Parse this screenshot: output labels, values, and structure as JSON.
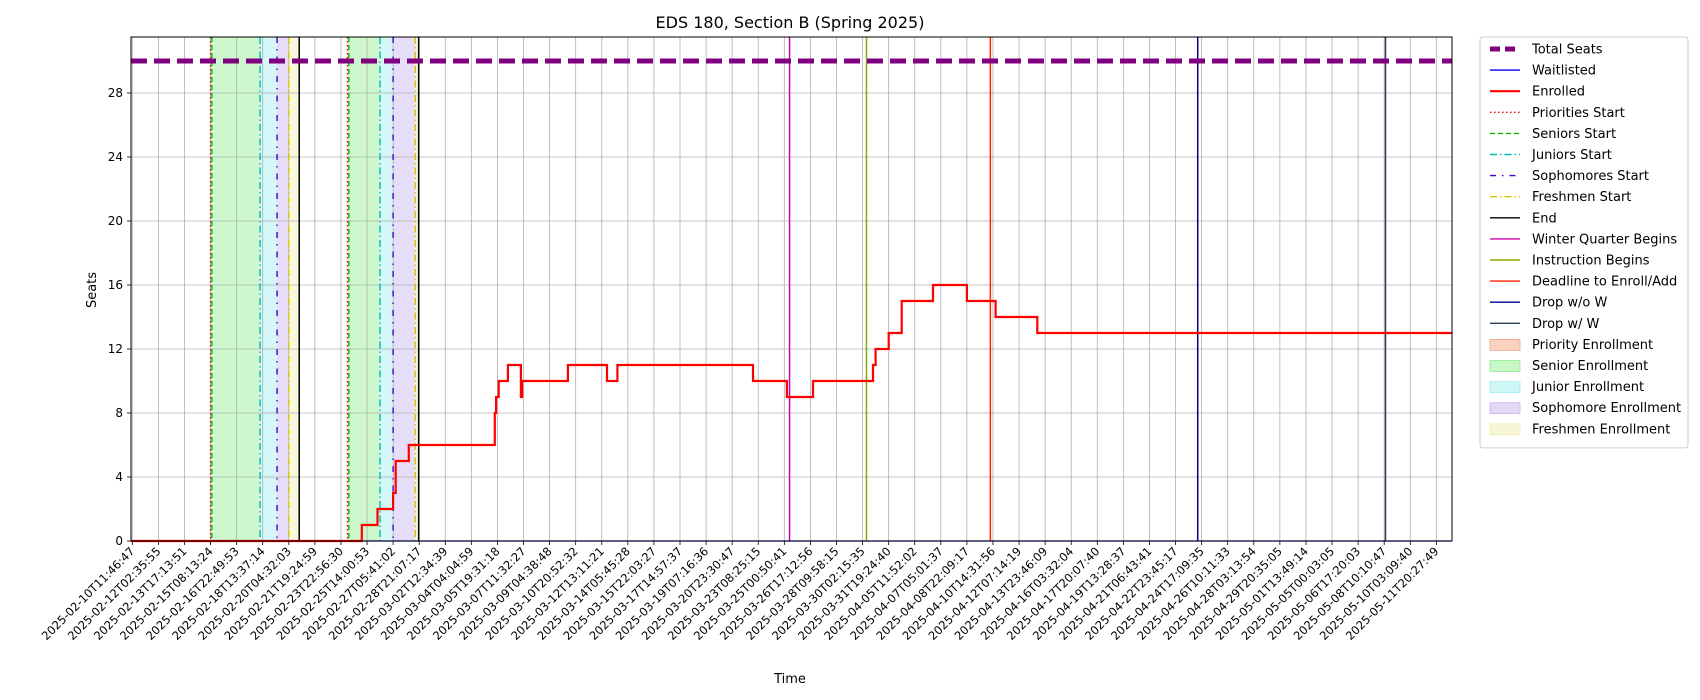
{
  "chart_data": {
    "type": "line",
    "title": "EDS 180, Section B (Spring 2025)",
    "xlabel": "Time",
    "ylabel": "Seats",
    "ylim": [
      0,
      31.5
    ],
    "yticks": [
      0,
      4,
      8,
      12,
      16,
      20,
      24,
      28
    ],
    "xticks": [
      "2025-02-10T11:46:47",
      "2025-02-12T02:35:55",
      "2025-02-13T17:13:51",
      "2025-02-15T08:13:24",
      "2025-02-16T22:49:53",
      "2025-02-18T13:37:14",
      "2025-02-20T04:32:03",
      "2025-02-21T19:24:59",
      "2025-02-23T22:56:30",
      "2025-02-25T14:00:53",
      "2025-02-27T05:41:02",
      "2025-02-28T21:07:17",
      "2025-03-02T12:34:39",
      "2025-03-04T04:04:59",
      "2025-03-05T19:31:18",
      "2025-03-07T11:32:27",
      "2025-03-09T04:38:48",
      "2025-03-10T20:52:32",
      "2025-03-12T13:11:21",
      "2025-03-14T05:45:28",
      "2025-03-15T22:03:27",
      "2025-03-17T14:57:37",
      "2025-03-19T07:16:36",
      "2025-03-20T23:30:47",
      "2025-03-23T08:25:15",
      "2025-03-25T00:50:41",
      "2025-03-26T17:12:56",
      "2025-03-28T09:58:15",
      "2025-03-30T02:15:35",
      "2025-03-31T19:24:40",
      "2025-04-05T11:52:02",
      "2025-04-07T05:01:37",
      "2025-04-08T22:09:17",
      "2025-04-10T14:31:56",
      "2025-04-12T07:14:19",
      "2025-04-13T23:46:09",
      "2025-04-16T03:32:04",
      "2025-04-17T20:07:40",
      "2025-04-19T13:28:37",
      "2025-04-21T06:43:41",
      "2025-04-22T23:45:17",
      "2025-04-24T17:09:35",
      "2025-04-26T10:11:33",
      "2025-04-28T03:13:54",
      "2025-04-29T20:35:05",
      "2025-05-01T13:49:14",
      "2025-05-05T00:03:05",
      "2025-05-06T17:20:03",
      "2025-05-08T10:10:47",
      "2025-05-10T03:09:40",
      "2025-05-11T20:27:49"
    ],
    "xlim": [
      -0.05,
      50.6
    ],
    "legend_position": "outside-right",
    "grid": true,
    "series": [
      {
        "name": "Total Seats",
        "style": "dashed",
        "color": "#800080",
        "points": [
          [
            -0.05,
            30
          ],
          [
            50.6,
            30
          ]
        ]
      },
      {
        "name": "Waitlisted",
        "style": "solid",
        "color": "#0000ff",
        "points": [
          [
            -0.05,
            0
          ],
          [
            50.6,
            0
          ]
        ]
      },
      {
        "name": "Enrolled",
        "style": "step",
        "color": "#ff0000",
        "points": [
          [
            -0.05,
            0
          ],
          [
            8.8,
            0
          ],
          [
            8.8,
            1
          ],
          [
            9.4,
            1
          ],
          [
            9.4,
            2
          ],
          [
            10.0,
            2
          ],
          [
            10.0,
            3
          ],
          [
            10.1,
            3
          ],
          [
            10.1,
            5
          ],
          [
            10.6,
            5
          ],
          [
            10.6,
            6
          ],
          [
            13.9,
            6
          ],
          [
            13.9,
            8
          ],
          [
            13.95,
            8
          ],
          [
            13.95,
            9
          ],
          [
            14.05,
            9
          ],
          [
            14.05,
            10
          ],
          [
            14.4,
            10
          ],
          [
            14.4,
            11
          ],
          [
            14.9,
            11
          ],
          [
            14.9,
            9
          ],
          [
            14.95,
            9
          ],
          [
            14.95,
            10
          ],
          [
            16.7,
            10
          ],
          [
            16.7,
            11
          ],
          [
            18.2,
            11
          ],
          [
            18.2,
            10
          ],
          [
            18.6,
            10
          ],
          [
            18.6,
            11
          ],
          [
            23.8,
            11
          ],
          [
            23.8,
            10
          ],
          [
            25.1,
            10
          ],
          [
            25.1,
            9
          ],
          [
            26.1,
            9
          ],
          [
            26.1,
            10
          ],
          [
            28.4,
            10
          ],
          [
            28.4,
            11
          ],
          [
            28.5,
            11
          ],
          [
            28.5,
            12
          ],
          [
            29.0,
            12
          ],
          [
            29.0,
            13
          ],
          [
            29.5,
            13
          ],
          [
            29.5,
            15
          ],
          [
            30.7,
            15
          ],
          [
            30.7,
            16
          ],
          [
            32.0,
            16
          ],
          [
            32.0,
            15
          ],
          [
            33.1,
            15
          ],
          [
            33.1,
            14
          ],
          [
            34.7,
            14
          ],
          [
            34.7,
            13
          ],
          [
            50.6,
            13
          ]
        ]
      }
    ],
    "vertical_lines": [
      {
        "name": "Priorities Start",
        "x": 3.0,
        "color": "#ff0000",
        "style": "dotted"
      },
      {
        "name": "Seniors Start",
        "x": 3.05,
        "color": "#00bb00",
        "style": "dashed"
      },
      {
        "name": "Juniors Start",
        "x": 4.9,
        "color": "#00bbbb",
        "style": "dashdot"
      },
      {
        "name": "Sophomores Start",
        "x": 5.55,
        "color": "#4b00cc",
        "style": "dashdotsparse"
      },
      {
        "name": "Freshmen Start",
        "x": 6.0,
        "color": "#e0c000",
        "style": "dashdot"
      },
      {
        "name": "End",
        "x": 6.4,
        "color": "#000000",
        "style": "solid"
      },
      {
        "name": "Priorities Start",
        "x": 8.25,
        "color": "#ff0000",
        "style": "dotted"
      },
      {
        "name": "Seniors Start",
        "x": 8.3,
        "color": "#00bb00",
        "style": "dashed"
      },
      {
        "name": "Juniors Start",
        "x": 9.5,
        "color": "#00bbbb",
        "style": "dashdot"
      },
      {
        "name": "Sophomores Start",
        "x": 10.0,
        "color": "#4b00cc",
        "style": "dashdotsparse"
      },
      {
        "name": "Freshmen Start",
        "x": 10.85,
        "color": "#e0c000",
        "style": "dashdot"
      },
      {
        "name": "End",
        "x": 10.98,
        "color": "#000000",
        "style": "solid"
      },
      {
        "name": "Winter Quarter Begins",
        "x": 25.2,
        "color": "#cc00aa",
        "style": "solid"
      },
      {
        "name": "Instruction Begins",
        "x": 28.15,
        "color": "#88aa00",
        "style": "solid"
      },
      {
        "name": "Deadline to Enroll/Add",
        "x": 32.9,
        "color": "#ff2200",
        "style": "solid"
      },
      {
        "name": "Drop w/o W",
        "x": 40.85,
        "color": "#00008b",
        "style": "solid"
      },
      {
        "name": "Drop w/ W",
        "x": 48.05,
        "color": "#2f3f55",
        "style": "solid"
      }
    ],
    "spans": [
      {
        "name": "Priority Enrollment",
        "x0": 3.0,
        "x1": 3.05,
        "color": "#f4a582"
      },
      {
        "name": "Senior Enrollment",
        "x0": 3.05,
        "x1": 4.9,
        "color": "#90ee90"
      },
      {
        "name": "Junior Enrollment",
        "x0": 4.9,
        "x1": 5.55,
        "color": "#a0eeee"
      },
      {
        "name": "Sophomore Enrollment",
        "x0": 5.55,
        "x1": 6.0,
        "color": "#c8b4f0"
      },
      {
        "name": "Freshmen Enrollment",
        "x0": 6.0,
        "x1": 6.4,
        "color": "#f0f0b0"
      },
      {
        "name": "Priority Enrollment",
        "x0": 8.25,
        "x1": 8.3,
        "color": "#f4a582"
      },
      {
        "name": "Senior Enrollment",
        "x0": 8.3,
        "x1": 9.5,
        "color": "#90ee90"
      },
      {
        "name": "Junior Enrollment",
        "x0": 9.5,
        "x1": 10.0,
        "color": "#a0eeee"
      },
      {
        "name": "Sophomore Enrollment",
        "x0": 10.0,
        "x1": 10.85,
        "color": "#c8b4f0"
      },
      {
        "name": "Freshmen Enrollment",
        "x0": 10.85,
        "x1": 10.98,
        "color": "#f0f0b0"
      }
    ],
    "legend": [
      {
        "label": "Total Seats",
        "kind": "line",
        "color": "#800080",
        "style": "dashed-thick"
      },
      {
        "label": "Waitlisted",
        "kind": "line",
        "color": "#0000ff",
        "style": "solid"
      },
      {
        "label": "Enrolled",
        "kind": "line",
        "color": "#ff0000",
        "style": "solid-thick"
      },
      {
        "label": "Priorities Start",
        "kind": "line",
        "color": "#ff0000",
        "style": "dotted"
      },
      {
        "label": "Seniors Start",
        "kind": "line",
        "color": "#00bb00",
        "style": "dashed"
      },
      {
        "label": "Juniors Start",
        "kind": "line",
        "color": "#00bbbb",
        "style": "dashdot"
      },
      {
        "label": "Sophomores Start",
        "kind": "line",
        "color": "#4b00cc",
        "style": "dashdotsparse"
      },
      {
        "label": "Freshmen Start",
        "kind": "line",
        "color": "#e0c000",
        "style": "dashdot"
      },
      {
        "label": "End",
        "kind": "line",
        "color": "#000000",
        "style": "solid"
      },
      {
        "label": "Winter Quarter Begins",
        "kind": "line",
        "color": "#cc00aa",
        "style": "solid"
      },
      {
        "label": "Instruction Begins",
        "kind": "line",
        "color": "#88aa00",
        "style": "solid"
      },
      {
        "label": "Deadline to Enroll/Add",
        "kind": "line",
        "color": "#ff2200",
        "style": "solid"
      },
      {
        "label": "Drop w/o W",
        "kind": "line",
        "color": "#00008b",
        "style": "solid"
      },
      {
        "label": "Drop w/ W",
        "kind": "line",
        "color": "#2f3f55",
        "style": "solid"
      },
      {
        "label": "Priority Enrollment",
        "kind": "patch",
        "color": "#f4a582"
      },
      {
        "label": "Senior Enrollment",
        "kind": "patch",
        "color": "#90ee90"
      },
      {
        "label": "Junior Enrollment",
        "kind": "patch",
        "color": "#a0eeee"
      },
      {
        "label": "Sophomore Enrollment",
        "kind": "patch",
        "color": "#c8b4f0"
      },
      {
        "label": "Freshmen Enrollment",
        "kind": "patch",
        "color": "#f0f0b0"
      }
    ]
  }
}
